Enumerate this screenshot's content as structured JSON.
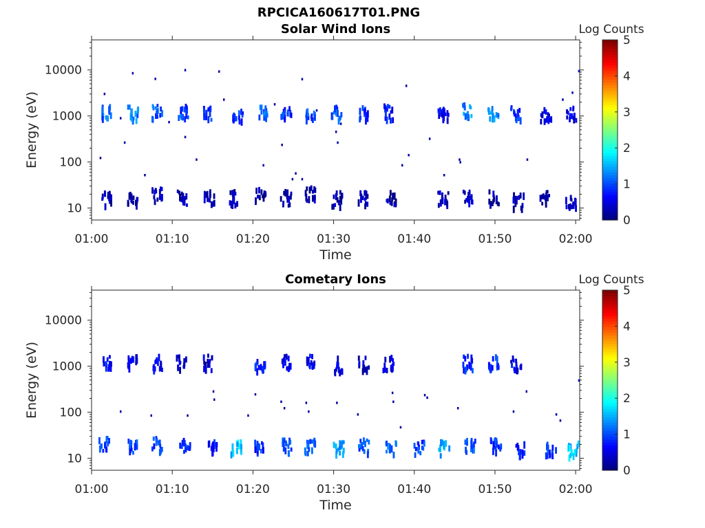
{
  "figure": {
    "title": "RPCICA160617T01.PNG"
  },
  "chart_data": [
    {
      "type": "heatmap",
      "title": "Solar Wind Ions",
      "xlabel": "Time",
      "ylabel": "Energy (eV)",
      "x_ticks": [
        "01:00",
        "01:10",
        "01:20",
        "01:30",
        "01:40",
        "01:50",
        "02:00"
      ],
      "x_range_minutes": [
        0,
        60.5
      ],
      "y_scale": "log",
      "y_range": [
        5.5,
        45000
      ],
      "y_ticks": [
        "10",
        "100",
        "1000",
        "10000"
      ],
      "colorbar": {
        "label": "Log Counts",
        "range": [
          0,
          5
        ],
        "ticks": [
          "0",
          "1",
          "2",
          "3",
          "4",
          "5"
        ],
        "colormap": "jet"
      },
      "note_cells": "each cell = [time_min, energy_eV, log_counts]",
      "clusters": [
        [
          1.8,
          1300,
          1.1
        ],
        [
          5.0,
          1300,
          1.2
        ],
        [
          8.0,
          1300,
          1.0
        ],
        [
          11.2,
          1300,
          0.9
        ],
        [
          14.2,
          1300,
          0.9
        ],
        [
          18.0,
          1200,
          0.8
        ],
        [
          21.0,
          1300,
          1.1
        ],
        [
          24.0,
          1300,
          0.8
        ],
        [
          27.0,
          1300,
          1.0
        ],
        [
          30.3,
          1300,
          1.0
        ],
        [
          33.6,
          1300,
          0.8
        ],
        [
          36.7,
          1300,
          0.7
        ],
        [
          43.5,
          1200,
          0.5
        ],
        [
          46.5,
          1400,
          1.3
        ],
        [
          49.7,
          1300,
          1.3
        ],
        [
          52.5,
          1200,
          0.8
        ],
        [
          56.2,
          1200,
          0.5
        ],
        [
          59.4,
          1200,
          0.5
        ],
        [
          1.8,
          18,
          0.2
        ],
        [
          5.0,
          18,
          0.2
        ],
        [
          8.0,
          22,
          0.3
        ],
        [
          11.2,
          18,
          0.2
        ],
        [
          14.5,
          18,
          0.2
        ],
        [
          17.6,
          18,
          0.2
        ],
        [
          20.8,
          22,
          0.2
        ],
        [
          24.0,
          18,
          0.2
        ],
        [
          27.0,
          22,
          0.2
        ],
        [
          30.3,
          17,
          0.3
        ],
        [
          33.6,
          18,
          0.2
        ],
        [
          37.0,
          18,
          0.1
        ],
        [
          43.5,
          17,
          0.3
        ],
        [
          46.5,
          20,
          0.3
        ],
        [
          49.7,
          18,
          0.2
        ],
        [
          52.8,
          16,
          0.2
        ],
        [
          56.0,
          18,
          0.1
        ],
        [
          59.3,
          15,
          0.3
        ]
      ],
      "scatter": [
        [
          1.0,
          130,
          0.1
        ],
        [
          1.5,
          3200,
          0.2
        ],
        [
          5.0,
          9000,
          0.2
        ],
        [
          7.8,
          6800,
          0.2
        ],
        [
          11.5,
          10500,
          0.2
        ],
        [
          15.7,
          9800,
          0.2
        ],
        [
          4.0,
          280,
          0.2
        ],
        [
          6.5,
          55,
          0.2
        ],
        [
          9.5,
          780,
          0.2
        ],
        [
          11.5,
          370,
          0.2
        ],
        [
          12.9,
          120,
          0.2
        ],
        [
          16.3,
          2400,
          0.2
        ],
        [
          21.2,
          90,
          0.2
        ],
        [
          22.6,
          1900,
          0.2
        ],
        [
          23.5,
          250,
          0.2
        ],
        [
          24.8,
          45,
          0.2
        ],
        [
          25.2,
          60,
          0.2
        ],
        [
          26.0,
          45,
          0.2
        ],
        [
          27.8,
          1400,
          0.2
        ],
        [
          30.2,
          480,
          0.2
        ],
        [
          30.8,
          720,
          0.2
        ],
        [
          30.4,
          280,
          0.2
        ],
        [
          38.4,
          90,
          0.2
        ],
        [
          38.9,
          4800,
          0.2
        ],
        [
          39.2,
          150,
          0.2
        ],
        [
          41.8,
          340,
          0.2
        ],
        [
          43.6,
          55,
          0.2
        ],
        [
          45.6,
          105,
          0.2
        ],
        [
          45.5,
          120,
          0.2
        ],
        [
          53.9,
          120,
          0.2
        ],
        [
          58.3,
          2400,
          0.2
        ],
        [
          59.5,
          3400,
          0.2
        ],
        [
          60.3,
          10000,
          0.2
        ],
        [
          3.5,
          950,
          0.2
        ],
        [
          26.0,
          6700,
          0.2
        ]
      ]
    },
    {
      "type": "heatmap",
      "title": "Cometary Ions",
      "xlabel": "Time",
      "ylabel": "Energy (eV)",
      "x_ticks": [
        "01:00",
        "01:10",
        "01:20",
        "01:30",
        "01:40",
        "01:50",
        "02:00"
      ],
      "x_range_minutes": [
        0,
        60.5
      ],
      "y_scale": "log",
      "y_range": [
        5.5,
        45000
      ],
      "y_ticks": [
        "10",
        "100",
        "1000",
        "10000"
      ],
      "colorbar": {
        "label": "Log Counts",
        "range": [
          0,
          5
        ],
        "ticks": [
          "0",
          "1",
          "2",
          "3",
          "4",
          "5"
        ],
        "colormap": "jet"
      },
      "note_cells": "each cell = [time_min, energy_eV, log_counts]",
      "clusters": [
        [
          1.8,
          1300,
          0.7
        ],
        [
          5.0,
          1300,
          0.6
        ],
        [
          8.0,
          1300,
          0.6
        ],
        [
          11.0,
          1300,
          0.4
        ],
        [
          14.2,
          1300,
          0.4
        ],
        [
          20.8,
          1200,
          0.7
        ],
        [
          24.0,
          1300,
          0.6
        ],
        [
          27.0,
          1300,
          0.5
        ],
        [
          30.3,
          1200,
          0.6
        ],
        [
          33.6,
          1200,
          0.4
        ],
        [
          36.7,
          1300,
          0.5
        ],
        [
          46.5,
          1300,
          0.8
        ],
        [
          49.7,
          1300,
          0.8
        ],
        [
          52.5,
          1200,
          0.5
        ],
        [
          1.5,
          22,
          1.0
        ],
        [
          5.0,
          20,
          0.9
        ],
        [
          8.0,
          22,
          0.9
        ],
        [
          11.5,
          20,
          0.8
        ],
        [
          14.8,
          20,
          0.7
        ],
        [
          17.8,
          20,
          1.6
        ],
        [
          20.8,
          20,
          0.8
        ],
        [
          24.0,
          20,
          1.0
        ],
        [
          27.0,
          20,
          1.1
        ],
        [
          30.5,
          20,
          1.3
        ],
        [
          33.6,
          20,
          1.0
        ],
        [
          37.0,
          20,
          1.2
        ],
        [
          40.5,
          18,
          0.9
        ],
        [
          43.6,
          18,
          1.5
        ],
        [
          46.8,
          20,
          1.0
        ],
        [
          50.0,
          20,
          0.9
        ],
        [
          53.0,
          18,
          0.7
        ],
        [
          56.8,
          17,
          0.8
        ],
        [
          59.6,
          17,
          1.6
        ]
      ],
      "scatter": [
        [
          3.5,
          110,
          0.2
        ],
        [
          7.3,
          90,
          0.2
        ],
        [
          11.8,
          90,
          0.2
        ],
        [
          15.0,
          300,
          0.2
        ],
        [
          15.1,
          200,
          0.2
        ],
        [
          19.3,
          90,
          0.2
        ],
        [
          20.2,
          260,
          0.2
        ],
        [
          23.4,
          180,
          0.2
        ],
        [
          23.8,
          130,
          0.2
        ],
        [
          26.5,
          170,
          0.2
        ],
        [
          26.8,
          110,
          0.2
        ],
        [
          30.3,
          170,
          0.2
        ],
        [
          32.9,
          95,
          0.2
        ],
        [
          37.2,
          280,
          0.2
        ],
        [
          37.3,
          180,
          0.2
        ],
        [
          38.2,
          50,
          0.2
        ],
        [
          41.2,
          250,
          0.2
        ],
        [
          41.5,
          220,
          0.2
        ],
        [
          45.3,
          130,
          0.2
        ],
        [
          52.2,
          110,
          0.2
        ],
        [
          53.8,
          300,
          0.2
        ],
        [
          57.5,
          95,
          0.2
        ],
        [
          58.0,
          70,
          0.2
        ],
        [
          60.3,
          520,
          0.2
        ]
      ]
    }
  ]
}
